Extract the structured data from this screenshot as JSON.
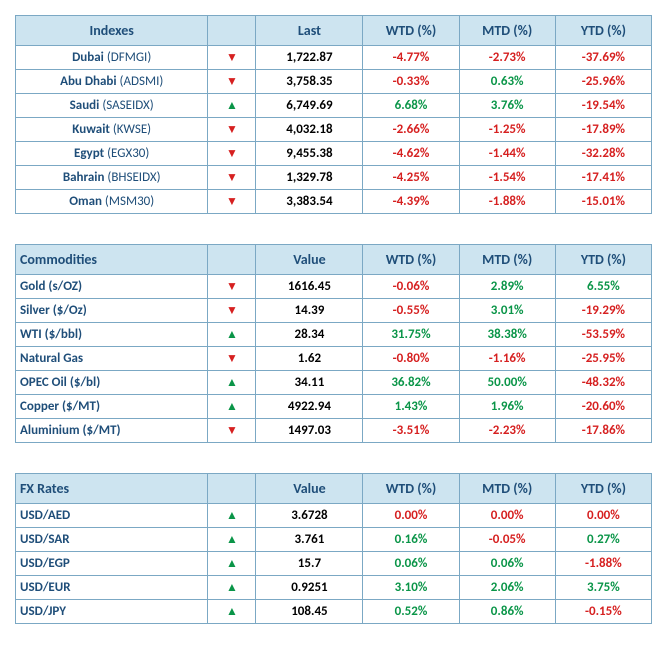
{
  "tables": [
    {
      "id": "indexes",
      "nameHeader": "Indexes",
      "valueHeader": "Last",
      "headerAlign": "center",
      "nameAlign": "center",
      "cols": [
        "WTD (%)",
        "MTD (%)",
        "YTD (%)"
      ],
      "rows": [
        {
          "name": "Dubai",
          "ticker": "(DFMGI)",
          "dir": "down",
          "value": "1,722.87",
          "wtd": "-4.77%",
          "mtd": "-2.73%",
          "ytd": "-37.69%"
        },
        {
          "name": "Abu Dhabi",
          "ticker": "(ADSMI)",
          "dir": "down",
          "value": "3,758.35",
          "wtd": "-0.33%",
          "mtd": "0.63%",
          "ytd": "-25.96%"
        },
        {
          "name": "Saudi",
          "ticker": "(SASEIDX)",
          "dir": "up",
          "value": "6,749.69",
          "wtd": "6.68%",
          "mtd": "3.76%",
          "ytd": "-19.54%"
        },
        {
          "name": "Kuwait",
          "ticker": "(KWSE)",
          "dir": "down",
          "value": "4,032.18",
          "wtd": "-2.66%",
          "mtd": "-1.25%",
          "ytd": "-17.89%"
        },
        {
          "name": "Egypt",
          "ticker": "(EGX30)",
          "dir": "down",
          "value": "9,455.38",
          "wtd": "-4.62%",
          "mtd": "-1.44%",
          "ytd": "-32.28%"
        },
        {
          "name": "Bahrain",
          "ticker": "(BHSEIDX)",
          "dir": "down",
          "value": "1,329.78",
          "wtd": "-4.25%",
          "mtd": "-1.54%",
          "ytd": "-17.41%"
        },
        {
          "name": "Oman",
          "ticker": "(MSM30)",
          "dir": "down",
          "value": "3,383.54",
          "wtd": "-4.39%",
          "mtd": "-1.88%",
          "ytd": "-15.01%"
        }
      ]
    },
    {
      "id": "commodities",
      "nameHeader": "Commodities",
      "valueHeader": "Value",
      "headerAlign": "left",
      "nameAlign": "left",
      "cols": [
        "WTD (%)",
        "MTD (%)",
        "YTD (%)"
      ],
      "rows": [
        {
          "name": "Gold",
          "ticker": "(s/OZ)",
          "dir": "down",
          "value": "1616.45",
          "wtd": "-0.06%",
          "mtd": "2.89%",
          "ytd": "6.55%"
        },
        {
          "name": "Silver",
          "ticker": "($/Oz)",
          "dir": "down",
          "value": "14.39",
          "wtd": "-0.55%",
          "mtd": "3.01%",
          "ytd": "-19.29%"
        },
        {
          "name": "WTI",
          "ticker": "($/bbl)",
          "dir": "up",
          "value": "28.34",
          "wtd": "31.75%",
          "mtd": "38.38%",
          "ytd": "-53.59%"
        },
        {
          "name": "Natural Gas",
          "ticker": "",
          "dir": "down",
          "value": "1.62",
          "wtd": "-0.80%",
          "mtd": "-1.16%",
          "ytd": "-25.95%"
        },
        {
          "name": "OPEC Oil",
          "ticker": "($/bl)",
          "dir": "up",
          "value": "34.11",
          "wtd": "36.82%",
          "mtd": "50.00%",
          "ytd": "-48.32%"
        },
        {
          "name": "Copper",
          "ticker": "($/MT)",
          "dir": "up",
          "value": "4922.94",
          "wtd": "1.43%",
          "mtd": "1.96%",
          "ytd": "-20.60%"
        },
        {
          "name": "Aluminium",
          "ticker": "($/MT)",
          "dir": "down",
          "value": "1497.03",
          "wtd": "-3.51%",
          "mtd": "-2.23%",
          "ytd": "-17.86%"
        }
      ]
    },
    {
      "id": "fx",
      "nameHeader": "FX Rates",
      "valueHeader": "Value",
      "headerAlign": "left",
      "nameAlign": "left",
      "cols": [
        "WTD (%)",
        "MTD (%)",
        "YTD (%)"
      ],
      "rows": [
        {
          "name": "USD/AED",
          "ticker": "",
          "dir": "up",
          "value": "3.6728",
          "wtd": "0.00%",
          "mtd": "0.00%",
          "ytd": "0.00%"
        },
        {
          "name": "USD/SAR",
          "ticker": "",
          "dir": "up",
          "value": "3.761",
          "wtd": "0.16%",
          "mtd": "-0.05%",
          "ytd": "0.27%"
        },
        {
          "name": "USD/EGP",
          "ticker": "",
          "dir": "up",
          "value": "15.7",
          "wtd": "0.06%",
          "mtd": "0.06%",
          "ytd": "-1.88%"
        },
        {
          "name": "USD/EUR",
          "ticker": "",
          "dir": "up",
          "value": "0.9251",
          "wtd": "3.10%",
          "mtd": "2.06%",
          "ytd": "3.75%"
        },
        {
          "name": "USD/JPY",
          "ticker": "",
          "dir": "up",
          "value": "108.45",
          "wtd": "0.52%",
          "mtd": "0.86%",
          "ytd": "-0.15%"
        }
      ]
    }
  ],
  "style": {
    "header_bg": "#cde4f0",
    "header_color": "#1f4e79",
    "border_color": "#7ba8c4",
    "pos_color": "#0a9548",
    "neg_color": "#d62020",
    "value_color": "#000000",
    "arrow_up": "▲",
    "arrow_down": "▼"
  }
}
